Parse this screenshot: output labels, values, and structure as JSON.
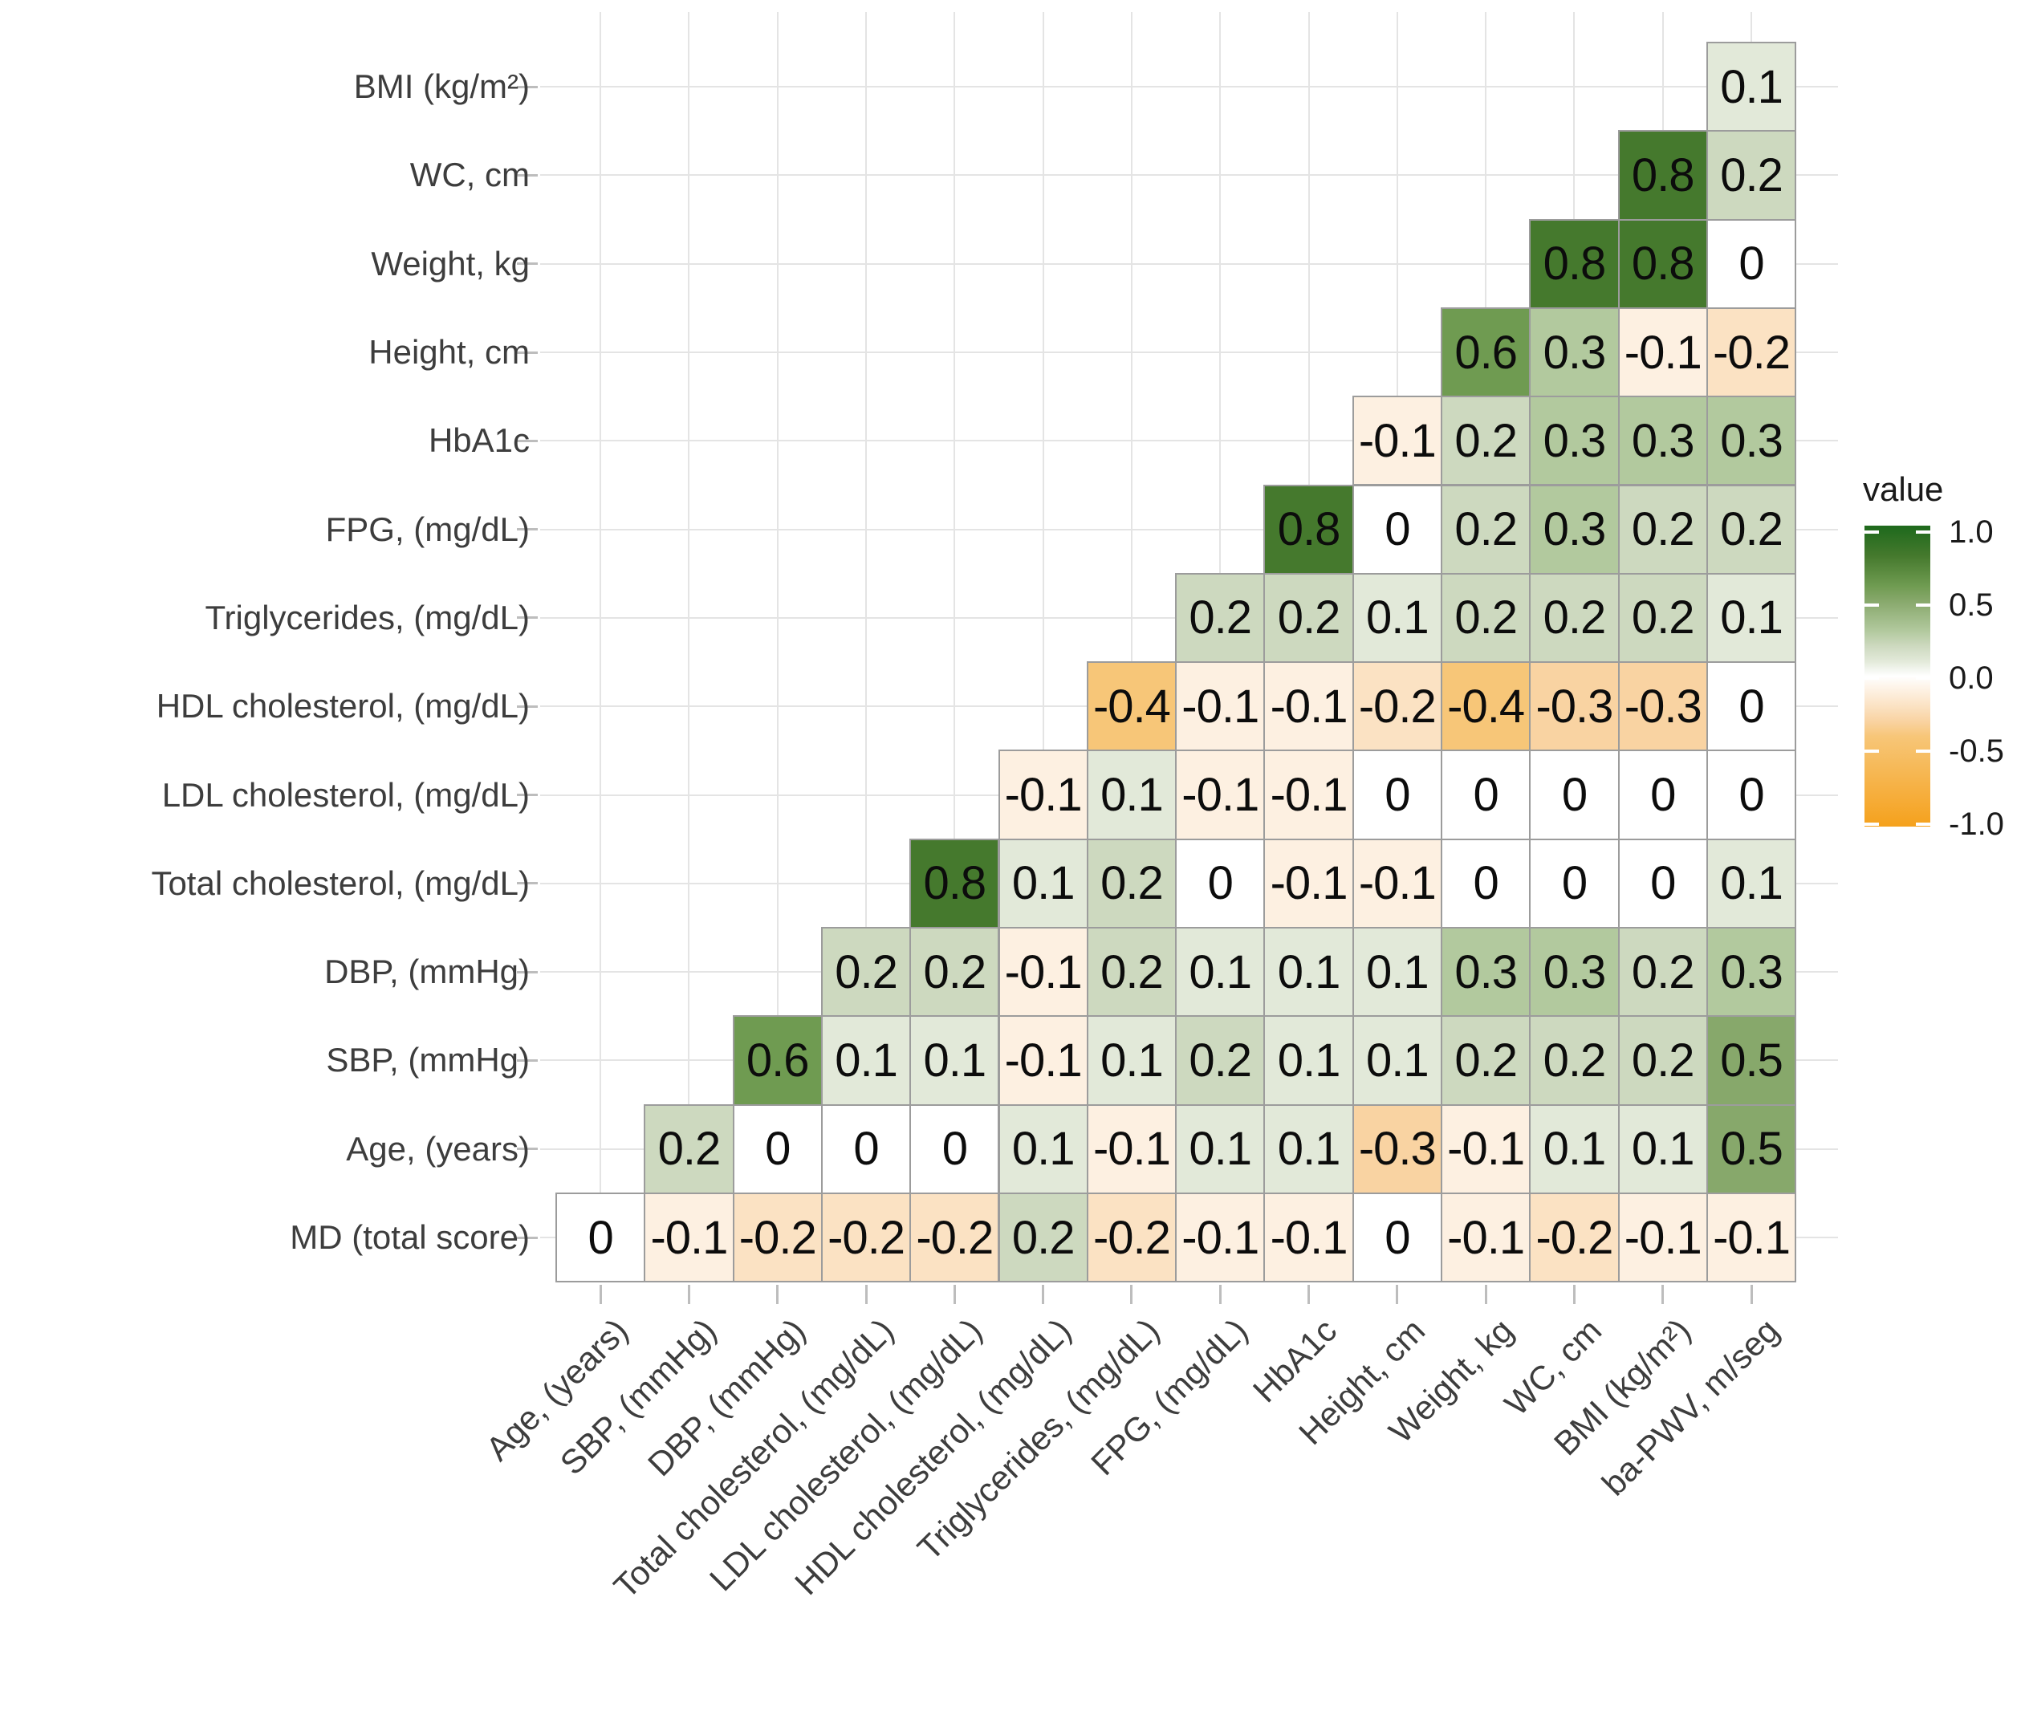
{
  "chart_data": {
    "type": "heatmap",
    "title": "",
    "description": "Lower-triangular correlation matrix heatmap of clinical variables",
    "columns": [
      "Age, (years)",
      "SBP, (mmHg)",
      "DBP, (mmHg)",
      "Total cholesterol, (mg/dL)",
      "LDL cholesterol, (mg/dL)",
      "HDL cholesterol, (mg/dL)",
      "Triglycerides, (mg/dL)",
      "FPG, (mg/dL)",
      "HbA1c",
      "Height, cm",
      "Weight, kg",
      "WC, cm",
      "BMI (kg/m²)",
      "ba-PWV, m/seg"
    ],
    "rows": [
      "BMI (kg/m²)",
      "WC, cm",
      "Weight, kg",
      "Height, cm",
      "HbA1c",
      "FPG, (mg/dL)",
      "Triglycerides, (mg/dL)",
      "HDL cholesterol, (mg/dL)",
      "LDL cholesterol, (mg/dL)",
      "Total cholesterol, (mg/dL)",
      "DBP, (mmHg)",
      "SBP, (mmHg)",
      "Age, (years)",
      "MD (total score)"
    ],
    "matrix": [
      [
        null,
        null,
        null,
        null,
        null,
        null,
        null,
        null,
        null,
        null,
        null,
        null,
        null,
        0.1
      ],
      [
        null,
        null,
        null,
        null,
        null,
        null,
        null,
        null,
        null,
        null,
        null,
        null,
        0.8,
        0.2
      ],
      [
        null,
        null,
        null,
        null,
        null,
        null,
        null,
        null,
        null,
        null,
        null,
        0.8,
        0.8,
        0
      ],
      [
        null,
        null,
        null,
        null,
        null,
        null,
        null,
        null,
        null,
        null,
        0.6,
        0.3,
        -0.1,
        -0.2
      ],
      [
        null,
        null,
        null,
        null,
        null,
        null,
        null,
        null,
        null,
        -0.1,
        0.2,
        0.3,
        0.3,
        0.3
      ],
      [
        null,
        null,
        null,
        null,
        null,
        null,
        null,
        null,
        0.8,
        0,
        0.2,
        0.3,
        0.2,
        0.2
      ],
      [
        null,
        null,
        null,
        null,
        null,
        null,
        null,
        0.2,
        0.2,
        0.1,
        0.2,
        0.2,
        0.2,
        0.1
      ],
      [
        null,
        null,
        null,
        null,
        null,
        null,
        -0.4,
        -0.1,
        -0.1,
        -0.2,
        -0.4,
        -0.3,
        -0.3,
        0
      ],
      [
        null,
        null,
        null,
        null,
        null,
        -0.1,
        0.1,
        -0.1,
        -0.1,
        0,
        0,
        0,
        0,
        0
      ],
      [
        null,
        null,
        null,
        null,
        0.8,
        0.1,
        0.2,
        0,
        -0.1,
        -0.1,
        0,
        0,
        0,
        0.1
      ],
      [
        null,
        null,
        null,
        0.2,
        0.2,
        -0.1,
        0.2,
        0.1,
        0.1,
        0.1,
        0.3,
        0.3,
        0.2,
        0.3
      ],
      [
        null,
        null,
        0.6,
        0.1,
        0.1,
        -0.1,
        0.1,
        0.2,
        0.1,
        0.1,
        0.2,
        0.2,
        0.2,
        0.5
      ],
      [
        null,
        0.2,
        0,
        0,
        0,
        0.1,
        -0.1,
        0.1,
        0.1,
        -0.3,
        -0.1,
        0.1,
        0.1,
        0.5
      ],
      [
        0,
        -0.1,
        -0.2,
        -0.2,
        -0.2,
        0.2,
        -0.2,
        -0.1,
        -0.1,
        0,
        -0.1,
        -0.2,
        -0.1,
        -0.1
      ]
    ],
    "legend": {
      "title": "value",
      "tick_labels": [
        "1.0",
        "0.5",
        "0.0",
        "-0.5",
        "-1.0"
      ],
      "tick_values": [
        1.0,
        0.5,
        0.0,
        -0.5,
        -1.0
      ],
      "max": 1.0,
      "min": -1.0,
      "position": "right"
    },
    "color_scale": {
      "anchors": [
        {
          "v": 1.0,
          "c": "#1d691c"
        },
        {
          "v": 0.8,
          "c": "#45792d"
        },
        {
          "v": 0.6,
          "c": "#6f9b51"
        },
        {
          "v": 0.5,
          "c": "#87a86b"
        },
        {
          "v": 0.3,
          "c": "#b2c99e"
        },
        {
          "v": 0.2,
          "c": "#cdd9bf"
        },
        {
          "v": 0.1,
          "c": "#e2e9d9"
        },
        {
          "v": 0.0,
          "c": "#ffffff"
        },
        {
          "v": -0.1,
          "c": "#fdf0e1"
        },
        {
          "v": -0.2,
          "c": "#fbe2c3"
        },
        {
          "v": -0.3,
          "c": "#f9d3a2"
        },
        {
          "v": -0.4,
          "c": "#f7c678"
        },
        {
          "v": -1.0,
          "c": "#f5a11c"
        }
      ],
      "high": "#1d691c",
      "mid": "#ffffff",
      "low": "#f5a11c"
    },
    "grid": true
  }
}
